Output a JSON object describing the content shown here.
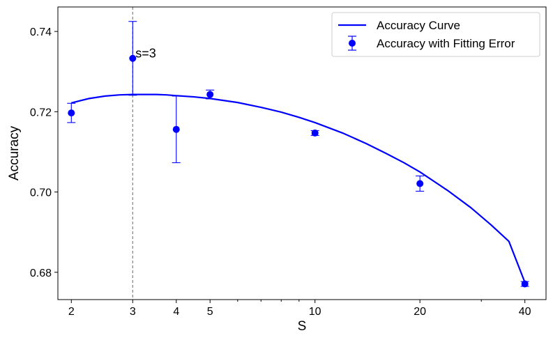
{
  "chart_data": {
    "type": "scatter",
    "xlabel": "S",
    "ylabel": "Accuracy",
    "x_scale": "log",
    "xlim": [
      1.83,
      46
    ],
    "ylim": [
      0.6732,
      0.7461
    ],
    "x_ticks": [
      2,
      3,
      4,
      5,
      10,
      20,
      40
    ],
    "x_tick_labels": [
      "2",
      "3",
      "4",
      "5",
      "10",
      "20",
      "40"
    ],
    "x_minor_ticks": [
      6,
      7,
      8,
      9,
      30
    ],
    "y_ticks": [
      0.68,
      0.7,
      0.72,
      0.74
    ],
    "y_tick_labels": [
      "0.68",
      "0.70",
      "0.72",
      "0.74"
    ],
    "grid": false,
    "legend_position": "top-right",
    "colors": {
      "series": "#0000ff",
      "reference_line": "#808080"
    },
    "series": [
      {
        "name": "Accuracy Curve",
        "kind": "line",
        "x": [
          2,
          2.25,
          2.5,
          2.75,
          3,
          3.25,
          3.5,
          3.75,
          4,
          4.5,
          5,
          6,
          7,
          8,
          9,
          10,
          12,
          14,
          16,
          18,
          20,
          24,
          28,
          32,
          36,
          40
        ],
        "y": [
          0.7222,
          0.7233,
          0.7239,
          0.7242,
          0.7243,
          0.7243,
          0.7243,
          0.7242,
          0.724,
          0.7237,
          0.7233,
          0.7223,
          0.7211,
          0.7199,
          0.7186,
          0.7173,
          0.7147,
          0.7121,
          0.7096,
          0.7073,
          0.705,
          0.7004,
          0.6961,
          0.6918,
          0.6877,
          0.6775
        ]
      },
      {
        "name": "Accuracy with Fitting Error",
        "kind": "errorbar",
        "x": [
          2,
          3,
          4,
          5,
          10,
          20,
          40
        ],
        "y": [
          0.7197,
          0.7333,
          0.7156,
          0.7243,
          0.7147,
          0.7021,
          0.6771
        ],
        "yerr": [
          0.0024,
          0.0092,
          0.0083,
          0.0011,
          0.0006,
          0.0019,
          0.0006
        ]
      }
    ],
    "reference_line": {
      "x": 3,
      "style": "dashed"
    },
    "annotations": [
      {
        "text": "s=3",
        "x": 3,
        "y": 0.7333
      }
    ]
  }
}
